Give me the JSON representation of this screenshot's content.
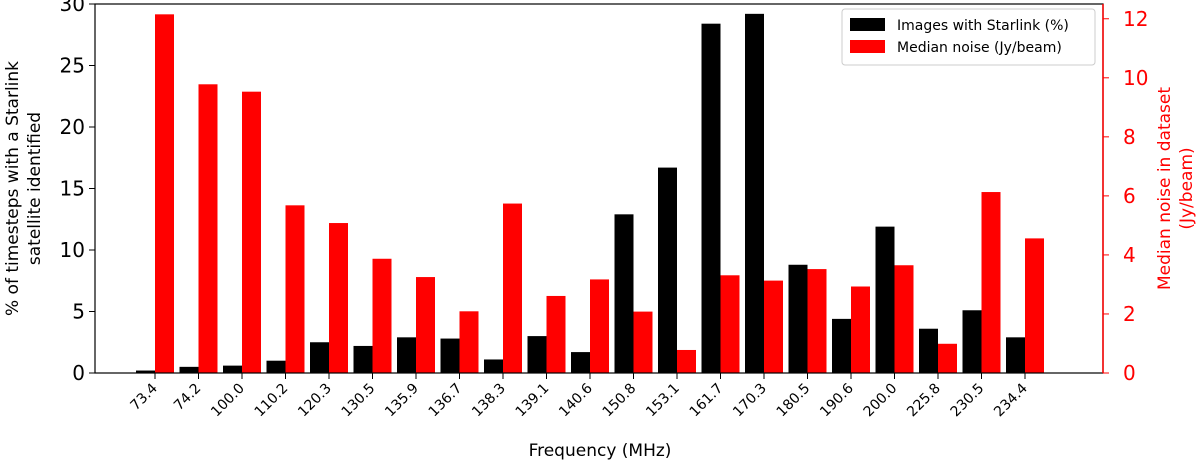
{
  "chart_data": {
    "type": "bar",
    "title": "",
    "xlabel": "Frequency (MHz)",
    "ylabel_left": "% of timesteps with a Starlink satellite identified",
    "ylabel_left_lines": [
      "% of timesteps with a Starlink",
      "satellite identified"
    ],
    "ylabel_right": "Median noise in dataset (Jy/beam)",
    "ylabel_right_lines": [
      "Median noise in dataset",
      "(Jy/beam)"
    ],
    "ylim_left": [
      0,
      30
    ],
    "ylim_right": [
      0,
      12.5
    ],
    "yticks_left": [
      "0",
      "5",
      "10",
      "15",
      "20",
      "25",
      "30"
    ],
    "yticks_right": [
      "0",
      "2",
      "4",
      "6",
      "8",
      "10",
      "12"
    ],
    "categories": [
      "73.4",
      "74.2",
      "100.0",
      "110.2",
      "120.3",
      "130.5",
      "135.9",
      "136.7",
      "138.3",
      "139.1",
      "140.6",
      "150.8",
      "153.1",
      "161.7",
      "170.3",
      "180.5",
      "190.6",
      "200.0",
      "225.8",
      "230.5",
      "234.4"
    ],
    "series": [
      {
        "name": "Images with Starlink (%)",
        "axis": "left",
        "color": "#000000",
        "values": [
          0.2,
          0.5,
          0.6,
          1.0,
          2.5,
          2.2,
          2.9,
          2.8,
          1.1,
          3.0,
          1.7,
          12.9,
          16.7,
          28.4,
          29.2,
          8.8,
          4.4,
          11.9,
          3.6,
          5.1,
          2.9
        ]
      },
      {
        "name": "Median noise (Jy/beam)",
        "axis": "right",
        "color": "#ff0000",
        "values": [
          12.15,
          9.78,
          9.53,
          5.68,
          5.08,
          3.87,
          3.25,
          2.09,
          5.74,
          2.61,
          3.17,
          2.08,
          0.78,
          3.31,
          3.13,
          3.52,
          2.93,
          3.65,
          0.99,
          6.13,
          4.56
        ]
      }
    ],
    "legend_position": "top-right",
    "grid": false,
    "axis_colors": {
      "left": "#000000",
      "right": "#ff0000"
    }
  }
}
